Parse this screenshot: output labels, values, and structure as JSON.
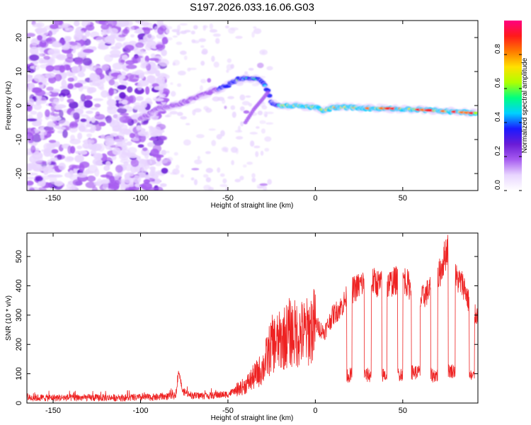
{
  "title": "S197.2026.033.16.06.G03",
  "chart_data": [
    {
      "type": "heatmap",
      "name": "spectrogram",
      "xlabel": "Height of straight line (km)",
      "ylabel": "Frequency (Hz)",
      "xlim": [
        -165,
        93
      ],
      "ylim": [
        -25,
        25
      ],
      "xticks": [
        "-150",
        "-100",
        "-50",
        "0",
        "50"
      ],
      "xtick_values": [
        -150,
        -100,
        -50,
        0,
        50
      ],
      "yticks": [
        "-20",
        "-10",
        "0",
        "10",
        "20"
      ],
      "ytick_values": [
        -20,
        -10,
        0,
        10,
        20
      ],
      "noise_region_x": [
        -165,
        -85
      ],
      "ridge": {
        "x": [
          -100,
          -90,
          -80,
          -70,
          -60,
          -55,
          -50,
          -45,
          -40,
          -35,
          -30,
          -27,
          -25,
          -20,
          -10,
          0,
          5,
          10,
          20,
          30,
          40,
          50,
          60,
          70,
          80,
          90
        ],
        "y": [
          -4,
          -1,
          0,
          2,
          4,
          5,
          6,
          7.5,
          8,
          8,
          7,
          4,
          1,
          0,
          0,
          -0.5,
          -1.5,
          -0.5,
          -0.5,
          -0.8,
          -0.8,
          -1,
          -1.2,
          -1.5,
          -1.8,
          -2.2
        ]
      },
      "secondary_branch": {
        "x": [
          -40,
          -35,
          -30,
          -27
        ],
        "y": [
          -5,
          -1,
          2,
          4
        ]
      },
      "colorbar": {
        "label": "Normalized spectral amplitude",
        "ticks": [
          "0.0",
          "0.2",
          "0.4",
          "0.6",
          "0.8"
        ],
        "tick_values": [
          0,
          0.2,
          0.4,
          0.6,
          0.8
        ],
        "range": [
          0,
          1
        ],
        "colors": [
          "#ffffff",
          "#e9d6ff",
          "#a75cf0",
          "#6a1bd6",
          "#1a1aff",
          "#00d0ff",
          "#00ff80",
          "#b0ff00",
          "#ffe000",
          "#ff7a00",
          "#ff1a1a",
          "#ff0080"
        ]
      }
    },
    {
      "type": "line",
      "name": "snr",
      "xlabel": "Height of straight line (km)",
      "ylabel": "SNR (10 * v/v)",
      "xlim": [
        -165,
        93
      ],
      "ylim": [
        0,
        580
      ],
      "xticks": [
        "-150",
        "-100",
        "-50",
        "0",
        "50"
      ],
      "xtick_values": [
        -150,
        -100,
        -50,
        0,
        50
      ],
      "yticks": [
        "0",
        "100",
        "200",
        "300",
        "400",
        "500"
      ],
      "ytick_values": [
        0,
        100,
        200,
        300,
        400,
        500
      ],
      "color": "#ee2222",
      "trend": {
        "x": [
          -165,
          -110,
          -90,
          -80,
          -78,
          -76,
          -70,
          -60,
          -50,
          -40,
          -35,
          -30,
          -25,
          -20,
          -15,
          -10,
          -5,
          0,
          5,
          10,
          15,
          20,
          25,
          30,
          40,
          50,
          60,
          70,
          77,
          80,
          85,
          90
        ],
        "y": [
          18,
          18,
          20,
          25,
          110,
          40,
          25,
          25,
          30,
          60,
          90,
          120,
          200,
          210,
          240,
          235,
          240,
          270,
          240,
          300,
          330,
          380,
          400,
          420,
          400,
          430,
          350,
          420,
          560,
          430,
          400,
          300
        ]
      },
      "dips": [
        {
          "x0": 18,
          "x1": 21,
          "level": 95
        },
        {
          "x0": 28,
          "x1": 32,
          "level": 95
        },
        {
          "x0": 38,
          "x1": 41,
          "level": 95
        },
        {
          "x0": 47,
          "x1": 50,
          "level": 100
        },
        {
          "x0": 55,
          "x1": 60,
          "level": 105
        },
        {
          "x0": 66,
          "x1": 70,
          "level": 95
        },
        {
          "x0": 76,
          "x1": 80,
          "level": 110
        },
        {
          "x0": 88,
          "x1": 91,
          "level": 90
        }
      ]
    }
  ]
}
